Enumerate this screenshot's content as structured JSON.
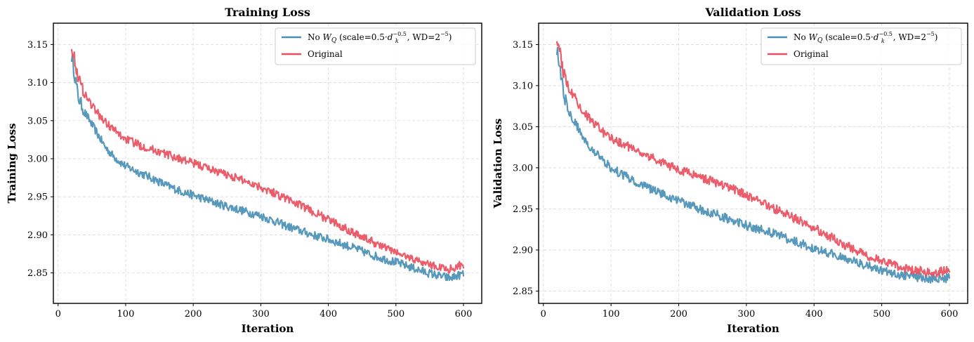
{
  "chart_data": [
    {
      "type": "line",
      "title": "Training Loss",
      "xlabel": "Iteration",
      "ylabel": "Training Loss",
      "xlim": [
        -7,
        627
      ],
      "ylim": [
        2.81,
        3.178
      ],
      "xticks": [
        0,
        100,
        200,
        300,
        400,
        500,
        600
      ],
      "xtick_labels": [
        "0",
        "100",
        "200",
        "300",
        "400",
        "500",
        "600"
      ],
      "yticks": [
        2.85,
        2.9,
        2.95,
        3.0,
        3.05,
        3.1,
        3.15
      ],
      "ytick_labels": [
        "2.85",
        "2.90",
        "2.95",
        "3.00",
        "3.05",
        "3.10",
        "3.15"
      ],
      "grid": true,
      "legend_position": "top-right",
      "series": [
        {
          "name": "No W_Q (scale=0.5·d_k^-0.5, WD=2^-5)",
          "color": "#4a90b5",
          "x": [
            20,
            30,
            40,
            50,
            60,
            70,
            80,
            90,
            100,
            120,
            140,
            160,
            180,
            200,
            220,
            240,
            260,
            280,
            300,
            320,
            340,
            360,
            380,
            400,
            420,
            440,
            460,
            480,
            500,
            520,
            540,
            560,
            580,
            600
          ],
          "y": [
            3.135,
            3.08,
            3.06,
            3.045,
            3.03,
            3.015,
            3.005,
            2.997,
            2.99,
            2.982,
            2.974,
            2.965,
            2.958,
            2.952,
            2.946,
            2.94,
            2.935,
            2.93,
            2.925,
            2.918,
            2.911,
            2.905,
            2.899,
            2.894,
            2.888,
            2.882,
            2.875,
            2.869,
            2.864,
            2.858,
            2.852,
            2.847,
            2.843,
            2.849
          ]
        },
        {
          "name": "Original",
          "color": "#e8505f",
          "x": [
            20,
            30,
            40,
            50,
            60,
            70,
            80,
            90,
            100,
            120,
            140,
            160,
            180,
            200,
            220,
            240,
            260,
            280,
            300,
            320,
            340,
            360,
            380,
            400,
            420,
            440,
            460,
            480,
            500,
            520,
            540,
            560,
            580,
            600
          ],
          "y": [
            3.15,
            3.105,
            3.085,
            3.07,
            3.058,
            3.048,
            3.04,
            3.032,
            3.026,
            3.018,
            3.012,
            3.006,
            3.0,
            2.994,
            2.988,
            2.982,
            2.976,
            2.97,
            2.963,
            2.955,
            2.947,
            2.938,
            2.929,
            2.92,
            2.911,
            2.902,
            2.893,
            2.885,
            2.877,
            2.87,
            2.864,
            2.858,
            2.855,
            2.862
          ]
        }
      ]
    },
    {
      "type": "line",
      "title": "Validation Loss",
      "xlabel": "Iteration",
      "ylabel": "Validation Loss",
      "xlim": [
        -7,
        627
      ],
      "ylim": [
        2.835,
        3.176
      ],
      "xticks": [
        0,
        100,
        200,
        300,
        400,
        500,
        600
      ],
      "xtick_labels": [
        "0",
        "100",
        "200",
        "300",
        "400",
        "500",
        "600"
      ],
      "yticks": [
        2.85,
        2.9,
        2.95,
        3.0,
        3.05,
        3.1,
        3.15
      ],
      "ytick_labels": [
        "2.85",
        "2.90",
        "2.95",
        "3.00",
        "3.05",
        "3.10",
        "3.15"
      ],
      "grid": true,
      "legend_position": "top-right",
      "series": [
        {
          "name": "No W_Q (scale=0.5·d_k^-0.5, WD=2^-5)",
          "color": "#4a90b5",
          "x": [
            20,
            30,
            40,
            50,
            60,
            70,
            80,
            90,
            100,
            120,
            140,
            160,
            180,
            200,
            220,
            240,
            260,
            280,
            300,
            320,
            340,
            360,
            380,
            400,
            420,
            440,
            460,
            480,
            500,
            520,
            540,
            560,
            580,
            600
          ],
          "y": [
            3.145,
            3.09,
            3.065,
            3.05,
            3.037,
            3.025,
            3.015,
            3.007,
            3.0,
            2.99,
            2.982,
            2.974,
            2.967,
            2.96,
            2.954,
            2.947,
            2.942,
            2.936,
            2.93,
            2.925,
            2.92,
            2.914,
            2.908,
            2.902,
            2.897,
            2.891,
            2.886,
            2.88,
            2.875,
            2.871,
            2.868,
            2.866,
            2.865,
            2.866
          ]
        },
        {
          "name": "Original",
          "color": "#e8505f",
          "x": [
            20,
            30,
            40,
            50,
            60,
            70,
            80,
            90,
            100,
            120,
            140,
            160,
            180,
            200,
            220,
            240,
            260,
            280,
            300,
            320,
            340,
            360,
            380,
            400,
            420,
            440,
            460,
            480,
            500,
            520,
            540,
            560,
            580,
            600
          ],
          "y": [
            3.16,
            3.115,
            3.095,
            3.08,
            3.068,
            3.058,
            3.05,
            3.042,
            3.036,
            3.028,
            3.02,
            3.012,
            3.005,
            2.998,
            2.992,
            2.986,
            2.98,
            2.974,
            2.967,
            2.959,
            2.951,
            2.943,
            2.935,
            2.927,
            2.918,
            2.909,
            2.9,
            2.893,
            2.886,
            2.881,
            2.877,
            2.874,
            2.872,
            2.876
          ]
        }
      ]
    }
  ]
}
